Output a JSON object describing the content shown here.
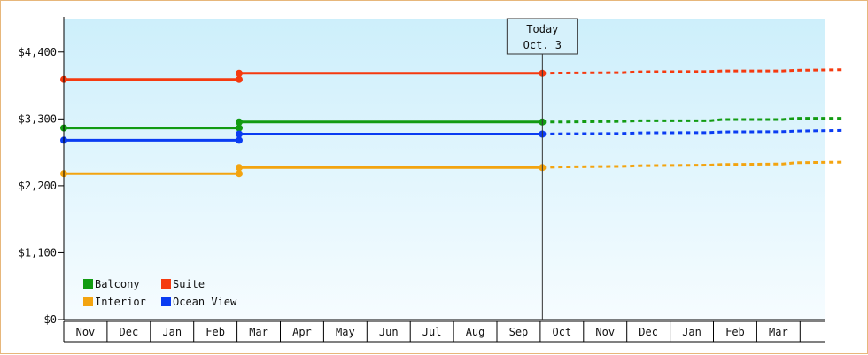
{
  "chart_data": {
    "type": "line",
    "title": "",
    "xlabel": "",
    "ylabel": "",
    "ylim": [
      0,
      4950
    ],
    "yticks": [
      0,
      1100,
      2200,
      3300,
      4400
    ],
    "ytick_labels": [
      "$0",
      "$1,100",
      "$2,200",
      "$3,300",
      "$4,400"
    ],
    "x_months": [
      "Nov",
      "Dec",
      "Jan",
      "Feb",
      "Mar",
      "Apr",
      "May",
      "Jun",
      "Jul",
      "Aug",
      "Sep",
      "Oct",
      "Nov",
      "Dec",
      "Jan",
      "Feb",
      "Mar"
    ],
    "grid": false,
    "legend_position": "bottom-left",
    "today": {
      "line1": "Today",
      "line2": "Oct. 3",
      "x": 11.05
    },
    "series": [
      {
        "name": "Balcony",
        "color": "#129b12",
        "actual": [
          [
            0,
            3150
          ],
          [
            4.05,
            3150
          ],
          [
            4.05,
            3250
          ],
          [
            11.05,
            3250
          ]
        ],
        "markers": [
          [
            0,
            3150
          ],
          [
            4.05,
            3150
          ],
          [
            4.05,
            3250
          ],
          [
            11.05,
            3250
          ]
        ],
        "forecast": [
          [
            11.05,
            3250
          ],
          [
            11.4,
            3250
          ],
          [
            12.9,
            3260
          ],
          [
            13.3,
            3270
          ],
          [
            14.9,
            3270
          ],
          [
            15.2,
            3290
          ],
          [
            16.6,
            3290
          ],
          [
            16.9,
            3310
          ],
          [
            18.0,
            3310
          ]
        ]
      },
      {
        "name": "Suite",
        "color": "#f53a0f",
        "actual": [
          [
            0,
            3950
          ],
          [
            4.05,
            3950
          ],
          [
            4.05,
            4050
          ],
          [
            11.05,
            4050
          ]
        ],
        "markers": [
          [
            0,
            3950
          ],
          [
            4.05,
            3950
          ],
          [
            4.05,
            4050
          ],
          [
            11.05,
            4050
          ]
        ],
        "forecast": [
          [
            11.05,
            4050
          ],
          [
            11.4,
            4055
          ],
          [
            12.9,
            4060
          ],
          [
            13.3,
            4075
          ],
          [
            14.9,
            4080
          ],
          [
            15.2,
            4090
          ],
          [
            16.6,
            4090
          ],
          [
            16.9,
            4100
          ],
          [
            18.0,
            4110
          ]
        ]
      },
      {
        "name": "Interior",
        "color": "#f3a410",
        "actual": [
          [
            0,
            2400
          ],
          [
            4.05,
            2400
          ],
          [
            4.05,
            2500
          ],
          [
            11.05,
            2500
          ]
        ],
        "markers": [
          [
            0,
            2400
          ],
          [
            4.05,
            2400
          ],
          [
            4.05,
            2500
          ],
          [
            11.05,
            2500
          ]
        ],
        "forecast": [
          [
            11.05,
            2500
          ],
          [
            11.4,
            2510
          ],
          [
            12.9,
            2520
          ],
          [
            13.3,
            2530
          ],
          [
            14.9,
            2540
          ],
          [
            15.2,
            2550
          ],
          [
            16.6,
            2560
          ],
          [
            16.9,
            2580
          ],
          [
            18.0,
            2590
          ]
        ]
      },
      {
        "name": "Ocean View",
        "color": "#0a3cf2",
        "actual": [
          [
            0,
            2950
          ],
          [
            4.05,
            2950
          ],
          [
            4.05,
            3050
          ],
          [
            11.05,
            3050
          ]
        ],
        "markers": [
          [
            0,
            2950
          ],
          [
            4.05,
            2950
          ],
          [
            4.05,
            3050
          ],
          [
            11.05,
            3050
          ]
        ],
        "forecast": [
          [
            11.05,
            3050
          ],
          [
            11.4,
            3055
          ],
          [
            12.9,
            3060
          ],
          [
            13.3,
            3070
          ],
          [
            14.9,
            3075
          ],
          [
            15.2,
            3085
          ],
          [
            16.6,
            3090
          ],
          [
            16.9,
            3100
          ],
          [
            18.0,
            3110
          ]
        ]
      }
    ],
    "legend_rows": [
      [
        "Balcony",
        "Suite"
      ],
      [
        "Interior",
        "Ocean View"
      ]
    ],
    "colors": {
      "background_top": "#cdeffb",
      "background_bottom": "#f6fcff",
      "axis": "#000000",
      "frame_border": "#e7b77b"
    }
  }
}
